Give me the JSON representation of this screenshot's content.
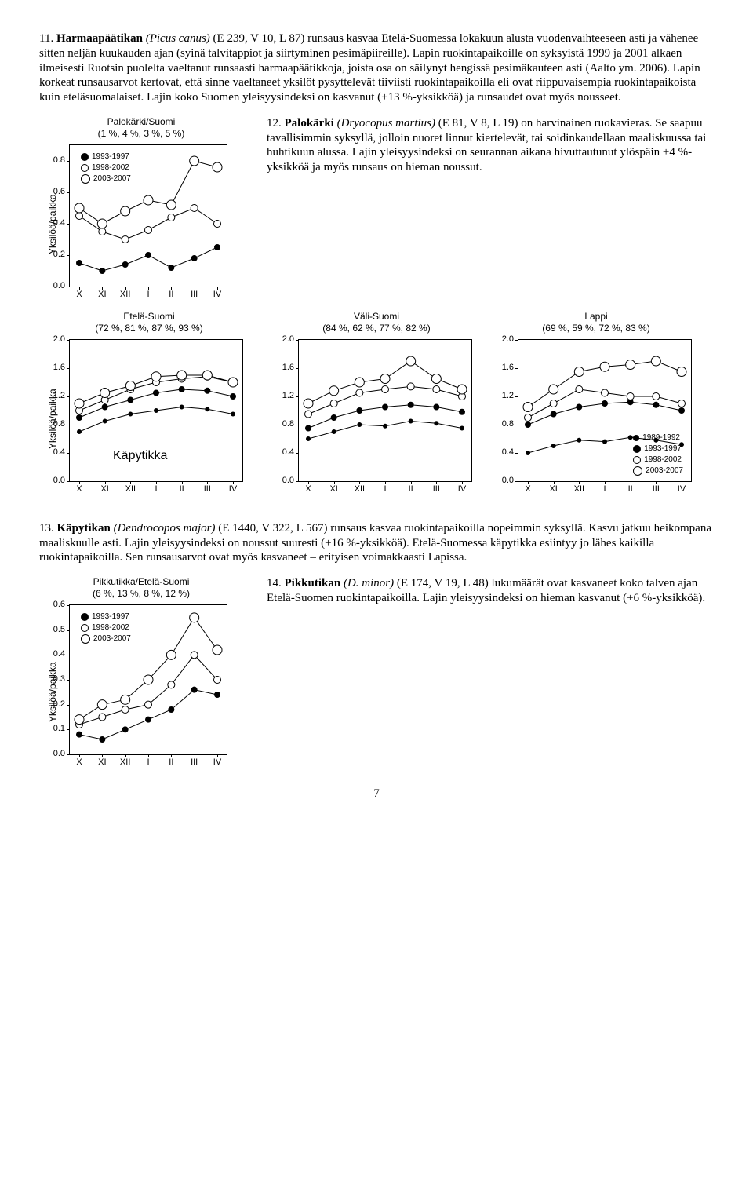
{
  "para11": {
    "lead": "11. ",
    "name": "Harmaapäätikan",
    "sci": " (Picus canus) ",
    "codes": "(E 239, V 10, L 87) runsaus kasvaa Etelä-Suomessa lokakuun alusta vuodenvaihteeseen asti ja vähenee sitten neljän kuukauden ajan (syinä talvitappiot ja siirtyminen pesimäpiireille). Lapin ruokintapaikoille on syksyistä 1999 ja 2001 alkaen ilmeisesti Ruotsin puolelta vaeltanut runsaasti harmaapäätikkoja, joista osa on säilynyt hengissä pesimäkauteen asti (Aalto ym. 2006). Lapin korkeat runsausarvot kertovat, että sinne vaeltaneet yksilöt pysyttelevät tiiviisti ruokintapaikoilla eli ovat riippuvaisempia ruokintapaikoista kuin eteläsuomalaiset. Lajin koko Suomen yleisyysindeksi on kasvanut (+13 %-yksikköä) ja runsaudet ovat myös nousseet."
  },
  "para12": {
    "lead": "12. ",
    "name": "Palokärki",
    "sci": " (Dryocopus martius) ",
    "rest": "(E 81, V 8, L 19) on harvinainen ruokavieras. Se saapuu tavallisimmin syksyllä, jolloin nuoret linnut kiertelevät, tai soidinkaudellaan maaliskuussa tai huhtikuun alussa. Lajin yleisyysindeksi on seurannan aikana hivuttautunut ylöspäin +4 %-yksikköä ja myös runsaus on hieman noussut."
  },
  "para13": {
    "lead": "13. ",
    "name": "Käpytikan",
    "sci": " (Dendrocopos major) ",
    "rest": "(E 1440, V 322, L 567) runsaus kasvaa ruokintapaikoilla nopeimmin syksyllä. Kasvu jatkuu heikompana maaliskuulle asti. Lajin yleisyysindeksi on noussut suuresti (+16 %-yksikköä). Etelä-Suomessa käpytikka esiintyy jo lähes kaikilla ruokintapaikoilla. Sen runsausarvot ovat myös kasvaneet – erityisen voimakkaasti Lapissa."
  },
  "para14": {
    "lead": "14. ",
    "name": "Pikkutikan",
    "sci": " (D. minor) ",
    "rest": "(E 174, V 19, L 48) lukumäärät ovat kasvaneet koko talven ajan Etelä-Suomen ruokintapaikoilla. Lajin yleisyysindeksi on hieman kasvanut (+6 %-yksikköä)."
  },
  "axis_y_label": "Yksilöä/paikka",
  "x_ticks": [
    "X",
    "XI",
    "XII",
    "I",
    "II",
    "III",
    "IV"
  ],
  "chart_palokarki": {
    "title": "Palokärki/Suomi\n(1 %, 4 %, 3 %, 5 %)",
    "ylim": [
      0.0,
      0.9
    ],
    "yticks": [
      "0.0",
      "0.2",
      "0.4",
      "0.6",
      "0.8"
    ],
    "ytick_vals": [
      0.0,
      0.2,
      0.4,
      0.6,
      0.8
    ],
    "legend": [
      "1993-1997",
      "1998-2002",
      "2003-2007"
    ],
    "series": {
      "s1": [
        0.15,
        0.1,
        0.14,
        0.2,
        0.12,
        0.18,
        0.25
      ],
      "s2": [
        0.45,
        0.35,
        0.3,
        0.36,
        0.44,
        0.5,
        0.4
      ],
      "s3": [
        0.5,
        0.4,
        0.48,
        0.55,
        0.52,
        0.8,
        0.76
      ]
    }
  },
  "chart_etela": {
    "title": "Etelä-Suomi\n(72 %, 81 %, 87 %, 93 %)",
    "ylim": [
      0.0,
      2.0
    ],
    "yticks": [
      "0.0",
      "0.4",
      "0.8",
      "1.2",
      "1.6",
      "2.0"
    ],
    "ytick_vals": [
      0.0,
      0.4,
      0.8,
      1.2,
      1.6,
      2.0
    ],
    "inside_label": "Käpytikka",
    "series": {
      "s1": [
        0.7,
        0.85,
        0.95,
        1.0,
        1.05,
        1.02,
        0.95
      ],
      "s2": [
        0.9,
        1.05,
        1.15,
        1.25,
        1.3,
        1.28,
        1.2
      ],
      "s3": [
        1.0,
        1.15,
        1.3,
        1.4,
        1.45,
        1.48,
        1.4
      ],
      "s4": [
        1.1,
        1.25,
        1.35,
        1.48,
        1.5,
        1.5,
        1.4
      ]
    }
  },
  "chart_vali": {
    "title": "Väli-Suomi\n(84 %, 62 %, 77 %, 82 %)",
    "ylim": [
      0.0,
      2.0
    ],
    "yticks": [
      "0.0",
      "0.4",
      "0.8",
      "1.2",
      "1.6",
      "2.0"
    ],
    "ytick_vals": [
      0.0,
      0.4,
      0.8,
      1.2,
      1.6,
      2.0
    ],
    "series": {
      "s1": [
        0.6,
        0.7,
        0.8,
        0.78,
        0.85,
        0.82,
        0.75
      ],
      "s2": [
        0.75,
        0.9,
        1.0,
        1.05,
        1.08,
        1.05,
        0.98
      ],
      "s3": [
        0.95,
        1.1,
        1.25,
        1.3,
        1.34,
        1.3,
        1.2
      ],
      "s4": [
        1.1,
        1.28,
        1.4,
        1.45,
        1.7,
        1.45,
        1.3
      ]
    }
  },
  "chart_lappi": {
    "title": "Lappi\n(69 %, 59 %, 72 %, 83 %)",
    "ylim": [
      0.0,
      2.0
    ],
    "yticks": [
      "0.0",
      "0.4",
      "0.8",
      "1.2",
      "1.6",
      "2.0"
    ],
    "ytick_vals": [
      0.0,
      0.4,
      0.8,
      1.2,
      1.6,
      2.0
    ],
    "legend": [
      "1989-1992",
      "1993-1997",
      "1998-2002",
      "2003-2007"
    ],
    "series": {
      "s1": [
        0.4,
        0.5,
        0.58,
        0.56,
        0.62,
        0.58,
        0.52
      ],
      "s2": [
        0.8,
        0.95,
        1.05,
        1.1,
        1.12,
        1.08,
        1.0
      ],
      "s3": [
        0.9,
        1.1,
        1.3,
        1.25,
        1.2,
        1.2,
        1.1
      ],
      "s4": [
        1.05,
        1.3,
        1.55,
        1.62,
        1.65,
        1.7,
        1.55
      ]
    }
  },
  "chart_pikku": {
    "title": "Pikkutikka/Etelä-Suomi\n(6 %, 13 %, 8 %, 12 %)",
    "ylim": [
      0.0,
      0.6
    ],
    "yticks": [
      "0.0",
      "0.1",
      "0.2",
      "0.3",
      "0.4",
      "0.5",
      "0.6"
    ],
    "ytick_vals": [
      0.0,
      0.1,
      0.2,
      0.3,
      0.4,
      0.5,
      0.6
    ],
    "legend": [
      "1993-1997",
      "1998-2002",
      "2003-2007"
    ],
    "series": {
      "s1": [
        0.08,
        0.06,
        0.1,
        0.14,
        0.18,
        0.26,
        0.24
      ],
      "s2": [
        0.12,
        0.15,
        0.18,
        0.2,
        0.28,
        0.4,
        0.3
      ],
      "s3": [
        0.14,
        0.2,
        0.22,
        0.3,
        0.4,
        0.55,
        0.42
      ]
    }
  },
  "page_num": "7"
}
